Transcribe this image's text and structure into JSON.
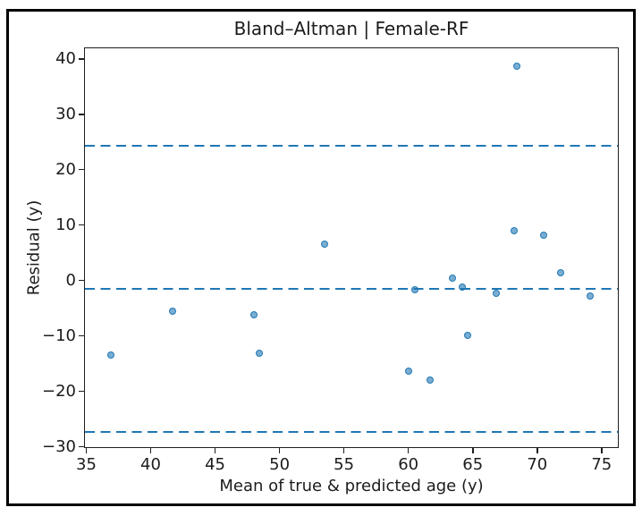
{
  "chart_data": {
    "type": "scatter",
    "title": "Bland–Altman | Female-RF",
    "xlabel": "Mean of true & predicted age (y)",
    "ylabel": "Residual (y)",
    "xlim": [
      34.9,
      76.4
    ],
    "ylim": [
      -30.4,
      41.9
    ],
    "xticks": [
      35,
      40,
      45,
      50,
      55,
      60,
      65,
      70,
      75
    ],
    "yticks": [
      40,
      30,
      20,
      10,
      0,
      -10,
      -20,
      -30
    ],
    "grid": false,
    "legend": "none",
    "points": [
      [
        36.9,
        -13.5
      ],
      [
        41.7,
        -5.5
      ],
      [
        48.0,
        -6.2
      ],
      [
        48.4,
        -13.1
      ],
      [
        53.5,
        6.6
      ],
      [
        60.0,
        -16.4
      ],
      [
        60.5,
        -1.6
      ],
      [
        61.7,
        -18.0
      ],
      [
        63.4,
        0.5
      ],
      [
        64.2,
        -1.2
      ],
      [
        64.6,
        -9.9
      ],
      [
        66.8,
        -2.3
      ],
      [
        68.2,
        8.9
      ],
      [
        68.4,
        38.6
      ],
      [
        70.5,
        8.2
      ],
      [
        71.8,
        1.4
      ],
      [
        74.1,
        -2.8
      ]
    ],
    "reference_lines": [
      {
        "name": "upper-loa",
        "value": 24.3,
        "style": "dashed"
      },
      {
        "name": "mean-bias",
        "value": -1.5,
        "style": "dashed"
      },
      {
        "name": "lower-loa",
        "value": -27.3,
        "style": "dashed"
      }
    ],
    "colors": {
      "point_fill": "#1f77b4",
      "point_alpha": 0.6,
      "point_edge_alpha": 0.95,
      "reference_line": "#1f77b4",
      "axis": "#1f1f1f",
      "text": "#1c1c1c",
      "frame": "#000000"
    }
  }
}
